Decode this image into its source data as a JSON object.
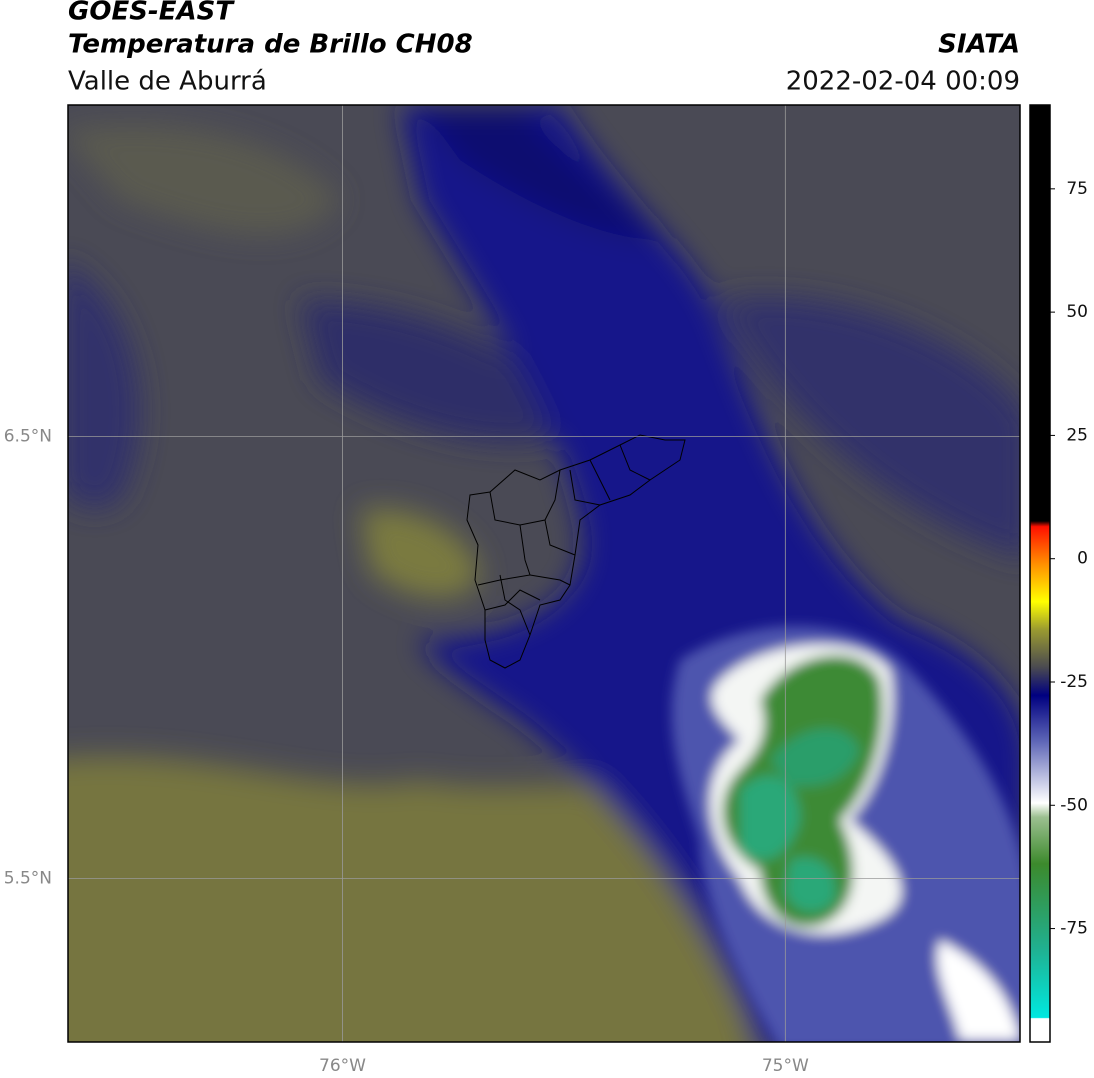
{
  "header": {
    "title": "GOES-EAST",
    "subtitle": "Temperatura de Brillo CH08",
    "region": "Valle de Aburrá",
    "source": "SIATA",
    "datetime": "2022-02-04 00:09"
  },
  "map": {
    "xlim": [
      -76.62,
      -74.47
    ],
    "ylim": [
      5.13,
      7.25
    ],
    "xticks": [
      {
        "value": -76,
        "label": "76°W"
      },
      {
        "value": -75,
        "label": "75°W"
      }
    ],
    "yticks": [
      {
        "value": 6.5,
        "label": "6.5°N"
      },
      {
        "value": 5.5,
        "label": "5.5°N"
      }
    ]
  },
  "colorbar": {
    "range": [
      -98,
      92
    ],
    "ticks": [
      75,
      50,
      25,
      0,
      -25,
      -50,
      -75
    ]
  }
}
